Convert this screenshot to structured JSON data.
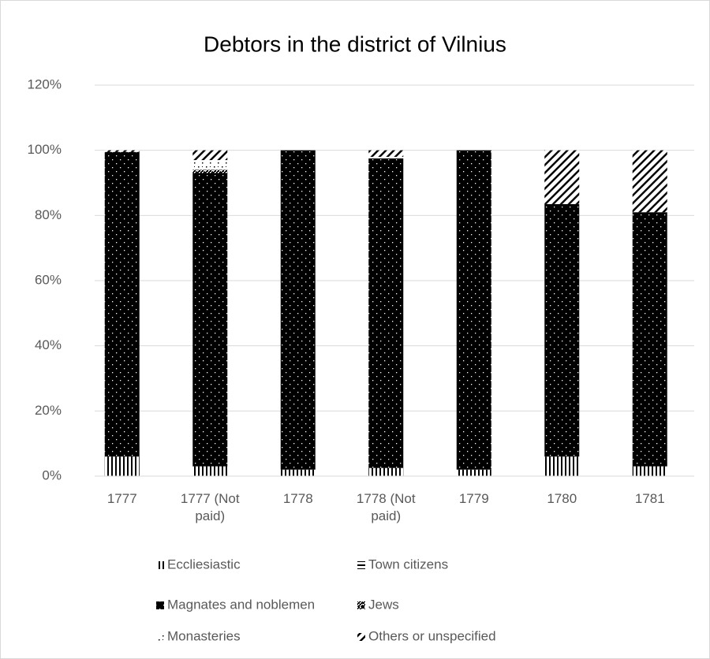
{
  "chart_data": {
    "type": "stacked_bar",
    "title": "Debtors in the district of Vilnius",
    "categories": [
      "1777",
      "1777 (Not paid)",
      "1778",
      "1778 (Not paid)",
      "1779",
      "1780",
      "1781"
    ],
    "series": [
      {
        "name": "Eccliesiastic",
        "color": "#000000",
        "pattern": "vertical",
        "values": [
          6,
          3,
          2,
          2.5,
          2,
          6,
          3
        ]
      },
      {
        "name": "Town citizens",
        "color": "#000000",
        "pattern": "horizontal",
        "values": [
          0,
          0,
          0,
          0,
          0,
          0,
          0
        ]
      },
      {
        "name": "Magnates and noblemen",
        "color": "#000000",
        "pattern": "dots-on-solid",
        "values": [
          93.5,
          90,
          98,
          95,
          98,
          77.5,
          78
        ]
      },
      {
        "name": "Jews",
        "color": "#000000",
        "pattern": "checker",
        "values": [
          0,
          1,
          0,
          0,
          0,
          0,
          0
        ]
      },
      {
        "name": "Monasteries",
        "color": "#000000",
        "pattern": "dots",
        "values": [
          0,
          3,
          0,
          0.5,
          0,
          0,
          0
        ]
      },
      {
        "name": "Others or unspecified",
        "color": "#000000",
        "pattern": "diagonal",
        "values": [
          0.5,
          3,
          0,
          2,
          0,
          16.5,
          19
        ]
      }
    ],
    "ylim": [
      0,
      120
    ],
    "yticks": [
      {
        "value": 0,
        "label": "0%"
      },
      {
        "value": 20,
        "label": "20%"
      },
      {
        "value": 40,
        "label": "40%"
      },
      {
        "value": 60,
        "label": "60%"
      },
      {
        "value": 80,
        "label": "80%"
      },
      {
        "value": 100,
        "label": "100%"
      },
      {
        "value": 120,
        "label": "120%"
      }
    ],
    "grid": true,
    "legend": "bottom"
  }
}
